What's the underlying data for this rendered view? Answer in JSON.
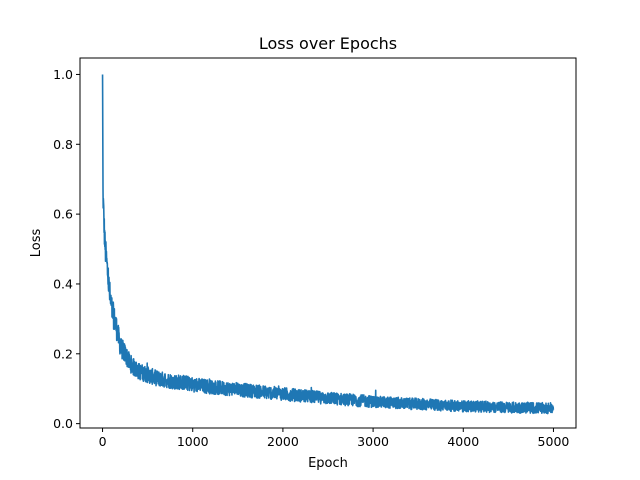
{
  "chart_data": {
    "type": "line",
    "title": "Loss over Epochs",
    "xlabel": "Epoch",
    "ylabel": "Loss",
    "xlim": [
      -250,
      5250
    ],
    "ylim": [
      -0.0125,
      1.0471
    ],
    "xticks": [
      0,
      1000,
      2000,
      3000,
      4000,
      5000
    ],
    "yticks": [
      0.0,
      0.2,
      0.4,
      0.6,
      0.8,
      1.0
    ],
    "xtick_labels": [
      "0",
      "1000",
      "2000",
      "3000",
      "4000",
      "5000"
    ],
    "ytick_labels": [
      "0.0",
      "0.2",
      "0.4",
      "0.6",
      "0.8",
      "1.0"
    ],
    "grid": false,
    "series": [
      {
        "color": "#1f77b4",
        "x": [
          0,
          5,
          10,
          20,
          30,
          50,
          75,
          100,
          150,
          200,
          250,
          300,
          350,
          400,
          500,
          600,
          700,
          800,
          900,
          1000,
          1200,
          1400,
          1600,
          1800,
          2000,
          2200,
          2400,
          2600,
          2800,
          3000,
          3200,
          3400,
          3600,
          3800,
          4000,
          4200,
          4400,
          4600,
          4800,
          5000
        ],
        "y": [
          1.0,
          0.66,
          0.62,
          0.55,
          0.5,
          0.45,
          0.38,
          0.33,
          0.28,
          0.22,
          0.2,
          0.175,
          0.16,
          0.15,
          0.14,
          0.13,
          0.125,
          0.12,
          0.118,
          0.112,
          0.105,
          0.1,
          0.095,
          0.09,
          0.085,
          0.08,
          0.075,
          0.071,
          0.067,
          0.063,
          0.06,
          0.057,
          0.055,
          0.052,
          0.05,
          0.049,
          0.047,
          0.046,
          0.045,
          0.044
        ]
      }
    ]
  }
}
